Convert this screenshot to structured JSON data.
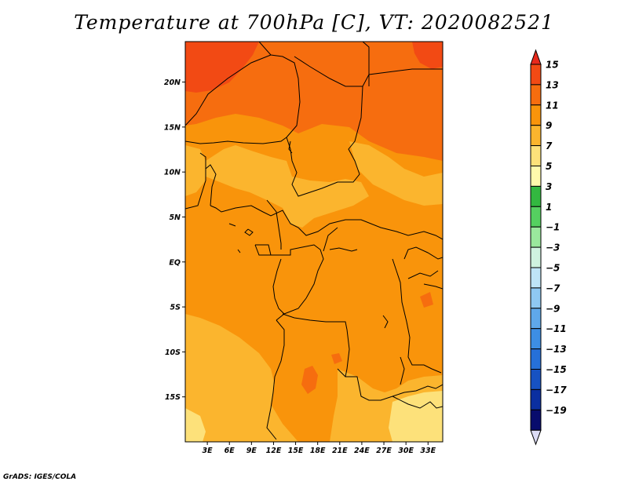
{
  "title": "Temperature at 700hPa [C], VT: 2020082521",
  "credit": "GrADS: IGES/COLA",
  "axes": {
    "lat_labels": [
      "20N",
      "15N",
      "10N",
      "5N",
      "EQ",
      "5S",
      "10S",
      "15S"
    ],
    "lat_values": [
      20,
      15,
      10,
      5,
      0,
      -5,
      -10,
      -15
    ],
    "lon_labels": [
      "3E",
      "6E",
      "9E",
      "12E",
      "15E",
      "18E",
      "21E",
      "24E",
      "27E",
      "30E",
      "33E"
    ],
    "lon_values": [
      3,
      6,
      9,
      12,
      15,
      18,
      21,
      24,
      27,
      30,
      33
    ],
    "lon_range": [
      0,
      35
    ],
    "lat_range": [
      -20,
      24.5
    ]
  },
  "colorbar": {
    "labels": [
      "15",
      "13",
      "11",
      "9",
      "7",
      "5",
      "3",
      "1",
      "−1",
      "−3",
      "−5",
      "−7",
      "−9",
      "−11",
      "−13",
      "−15",
      "−17",
      "−19"
    ],
    "colors": [
      "#e8291c",
      "#f24a14",
      "#f66d0f",
      "#f9940b",
      "#fbb52e",
      "#fde17a",
      "#fffaac",
      "#33b840",
      "#55d060",
      "#9ae89d",
      "#cff2e0",
      "#bfe4f7",
      "#8fc8f2",
      "#5fa8ea",
      "#3d8ee4",
      "#2670d8",
      "#1752c2",
      "#0b2fa0",
      "#080c6d",
      "#dcdcf5"
    ]
  }
}
